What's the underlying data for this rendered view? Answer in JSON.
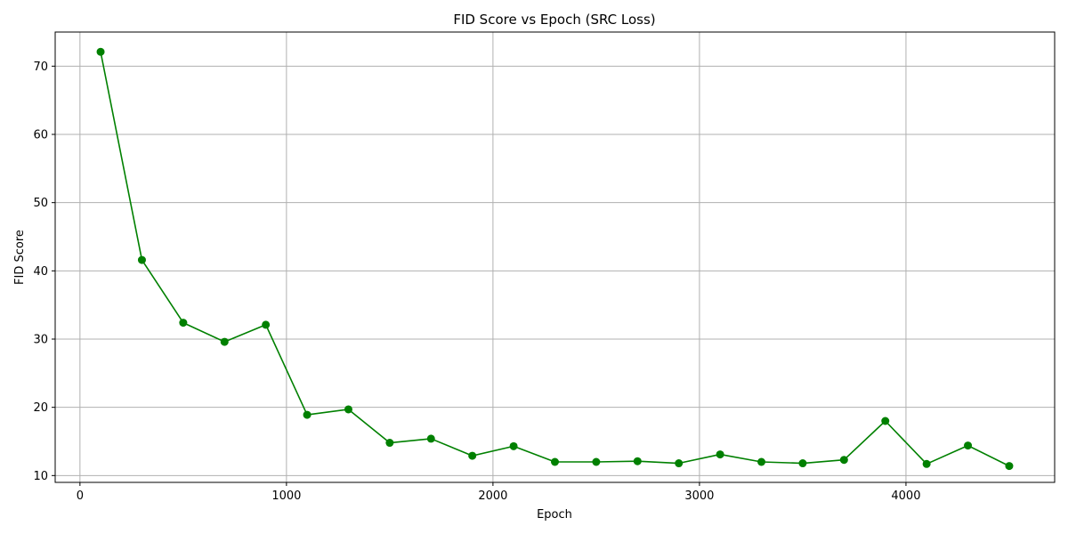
{
  "chart_data": {
    "type": "line",
    "title": "FID Score vs Epoch (SRC Loss)",
    "xlabel": "Epoch",
    "ylabel": "FID Score",
    "xlim": [
      -120,
      4720
    ],
    "ylim": [
      9.0,
      75.0
    ],
    "xticks": [
      0,
      1000,
      2000,
      3000,
      4000
    ],
    "yticks": [
      10,
      20,
      30,
      40,
      50,
      60,
      70
    ],
    "grid": true,
    "marker": "circle",
    "series": [
      {
        "color": "#008000",
        "x": [
          100,
          300,
          500,
          700,
          900,
          1100,
          1300,
          1500,
          1700,
          1900,
          2100,
          2300,
          2500,
          2700,
          2900,
          3100,
          3300,
          3500,
          3700,
          3900,
          4100,
          4300,
          4500
        ],
        "values": [
          72.1,
          41.6,
          32.4,
          29.6,
          32.1,
          18.9,
          19.7,
          14.8,
          15.4,
          12.9,
          14.3,
          12.0,
          12.0,
          12.1,
          11.8,
          13.1,
          12.0,
          11.8,
          12.3,
          18.0,
          11.7,
          14.4,
          11.4
        ]
      }
    ]
  }
}
